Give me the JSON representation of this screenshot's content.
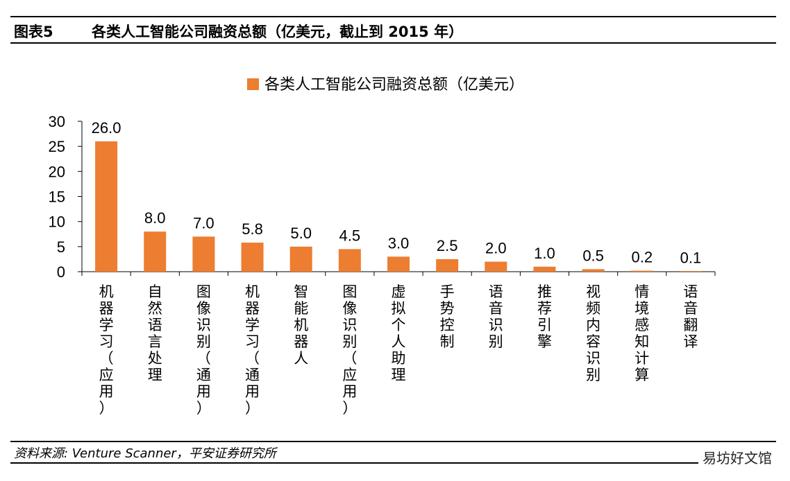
{
  "header": {
    "figure_number": "图表5",
    "title": "各类人工智能公司融资总额（亿美元，截止到 2015 年）"
  },
  "source": "资料来源: Venture Scanner，平安证券研究所",
  "watermark": "易坊好文馆",
  "chart_data": {
    "type": "bar",
    "categories": [
      "机器学习（应用）",
      "自然语言处理",
      "图像识别（通用）",
      "机器学习（通用）",
      "智能机器人",
      "图像识别（应用）",
      "虚拟个人助理",
      "手势控制",
      "语音识别",
      "推荐引擎",
      "视频内容识别",
      "情境感知计算",
      "语音翻译"
    ],
    "series": [
      {
        "name": "各类人工智能公司融资总额（亿美元）",
        "values": [
          26.0,
          8.0,
          7.0,
          5.8,
          5.0,
          4.5,
          3.0,
          2.5,
          2.0,
          1.0,
          0.5,
          0.2,
          0.1
        ],
        "labels": [
          "26.0",
          "8.0",
          "7.0",
          "5.8",
          "5.0",
          "4.5",
          "3.0",
          "2.5",
          "2.0",
          "1.0",
          "0.5",
          "0.2",
          "0.1"
        ]
      }
    ],
    "yticks": [
      "0",
      "5",
      "10",
      "15",
      "20",
      "25",
      "30"
    ],
    "ylim": [
      0,
      30
    ],
    "grid": false,
    "legend": "top-center",
    "color": "#ED7D31"
  }
}
